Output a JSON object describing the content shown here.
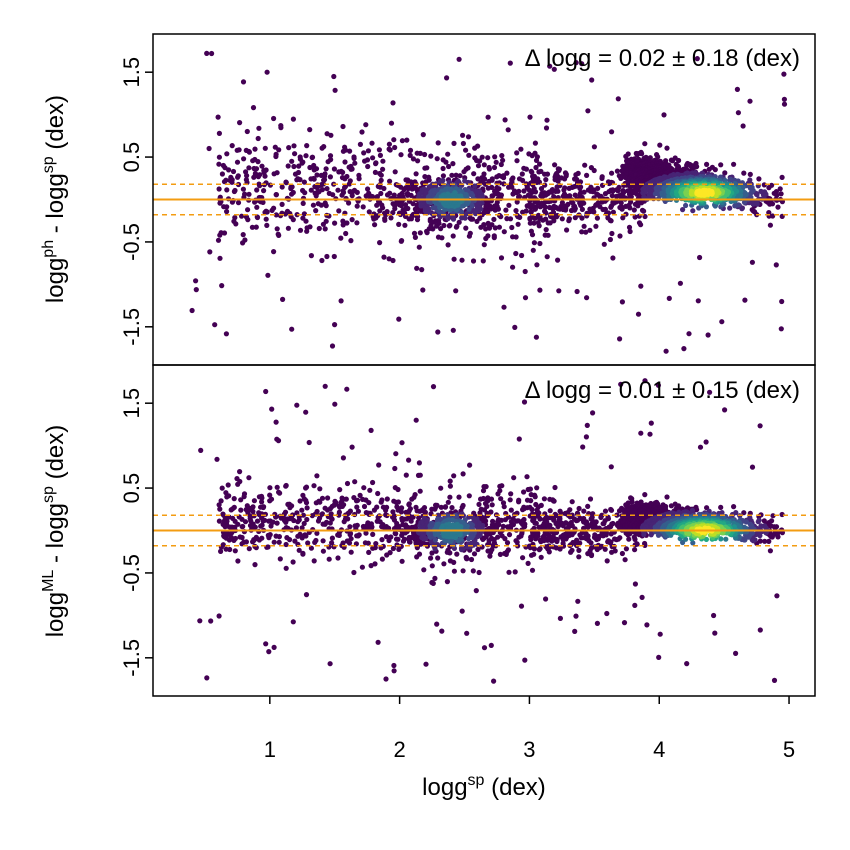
{
  "chart_data": {
    "type": "scatter",
    "colors": {
      "low_density": "#440154",
      "mid_density": "#21918c",
      "high_density": "#fde725",
      "reference_line": "#f39c12"
    },
    "xlabel": {
      "base": "logg",
      "sup": "sp",
      "unit": " (dex)"
    },
    "xlim": [
      0.1,
      5.2
    ],
    "x_ticks": [
      1,
      2,
      3,
      4,
      5
    ],
    "x_tick_labels": [
      "1",
      "2",
      "3",
      "4",
      "5"
    ],
    "panels": [
      {
        "ylabel": {
          "base1": "logg",
          "sup1": "ph",
          "mid": " - logg",
          "sup2": "sp",
          "unit": " (dex)"
        },
        "annotation": "Δ logg = 0.02 ± 0.18 (dex)",
        "ylim": [
          -1.95,
          1.95
        ],
        "y_ticks": [
          -1.5,
          -0.5,
          0.5,
          1.5
        ],
        "y_tick_labels": [
          "-1.5",
          "-0.5",
          "0.5",
          "1.5"
        ],
        "zero_line": 0,
        "band": [
          -0.18,
          0.18
        ]
      },
      {
        "ylabel": {
          "base1": "logg",
          "sup1": "ML",
          "mid": " - logg",
          "sup2": "sp",
          "unit": " (dex)"
        },
        "annotation": "Δ logg = 0.01 ± 0.15 (dex)",
        "ylim": [
          -1.95,
          1.95
        ],
        "y_ticks": [
          -1.5,
          -0.5,
          0.5,
          1.5
        ],
        "y_tick_labels": [
          "-1.5",
          "-0.5",
          "0.5",
          "1.5"
        ],
        "zero_line": 0,
        "band": [
          -0.18,
          0.18
        ]
      }
    ]
  }
}
